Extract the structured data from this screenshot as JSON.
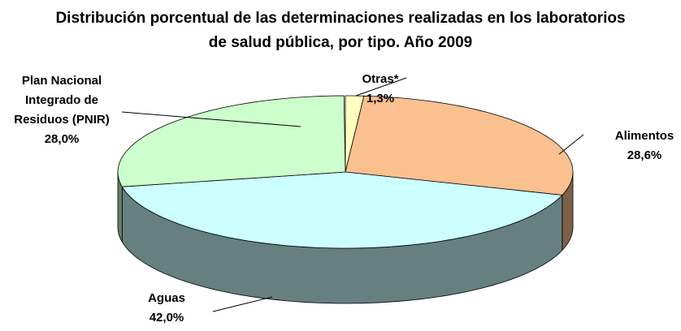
{
  "chart_data": {
    "type": "pie",
    "title": "Distribución porcentual de las determinaciones realizadas en los laboratorios de salud pública, por tipo. Año 2009",
    "categories": [
      "Otras*",
      "Alimentos",
      "Aguas",
      "Plan Nacional Integrado de Residuos (PNIR)"
    ],
    "values": [
      1.3,
      28.6,
      42.0,
      28.0
    ],
    "value_labels": [
      "1,3%",
      "28,6%",
      "42,0%",
      "28,0%"
    ],
    "colors": [
      "#ffffc0",
      "#fac090",
      "#ccffff",
      "#ccffcc"
    ]
  }
}
